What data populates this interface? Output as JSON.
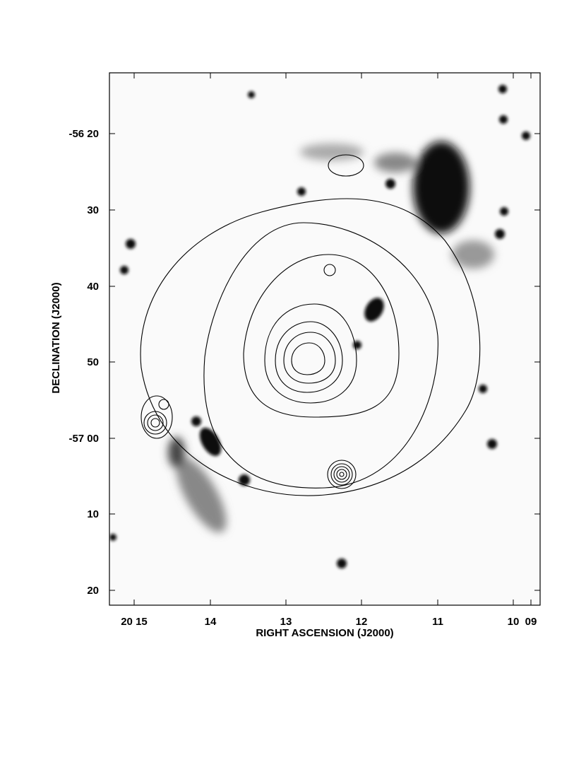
{
  "figure": {
    "x_axis": {
      "label": "RIGHT  ASCENSION (J2000)",
      "ticks": [
        "20 15",
        "14",
        "13",
        "12",
        "11",
        "10",
        "09"
      ]
    },
    "y_axis": {
      "label": "DECLINATION (J2000)",
      "ticks": [
        "-56 20",
        "30",
        "40",
        "50",
        "-57 00",
        "10",
        "20"
      ]
    }
  }
}
